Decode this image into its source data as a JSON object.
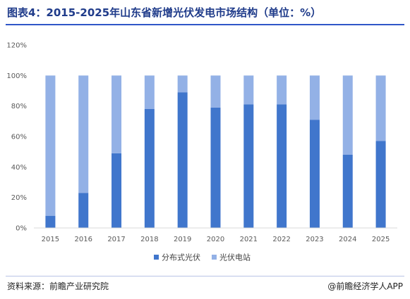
{
  "title": "图表4：2015-2025年山东省新增光伏发电市场结构（单位：%）",
  "source": "资料来源：前瞻产业研究院",
  "brand": "@前瞻经济学人APP",
  "chart_data": {
    "type": "bar",
    "stacked": true,
    "categories": [
      "2015",
      "2016",
      "2017",
      "2018",
      "2019",
      "2020",
      "2021",
      "2022",
      "2023",
      "2024",
      "2025"
    ],
    "series": [
      {
        "name": "分布式光伏",
        "color": "#4076cc",
        "values": [
          8,
          23,
          49,
          78,
          89,
          79,
          81,
          81,
          71,
          48,
          57
        ]
      },
      {
        "name": "光伏电站",
        "color": "#93b1e6",
        "values": [
          92,
          77,
          51,
          22,
          11,
          21,
          19,
          19,
          29,
          52,
          43
        ]
      }
    ],
    "yticks": [
      "0%",
      "20%",
      "40%",
      "60%",
      "80%",
      "100%",
      "120%"
    ],
    "ylim": [
      0,
      120
    ],
    "legend_position": "bottom",
    "grid": false
  }
}
